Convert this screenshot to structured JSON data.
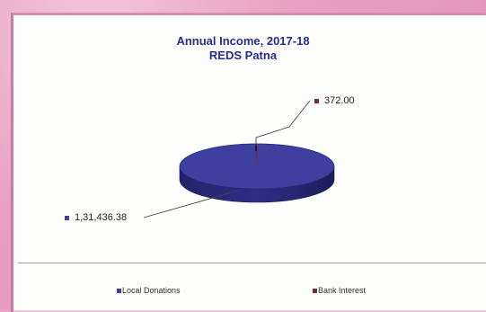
{
  "chart_data": {
    "type": "pie",
    "style": "3d",
    "title": "Annual Income, 2017-18",
    "subtitle": "REDS Patna",
    "categories": [
      "Local Donations",
      "Bank Interest"
    ],
    "values": [
      131436.38,
      372.0
    ],
    "value_labels": [
      "1,31,436.38",
      "372.00"
    ],
    "colors": [
      "#3f3fa0",
      "#7a2b38"
    ],
    "legend_position": "bottom"
  }
}
